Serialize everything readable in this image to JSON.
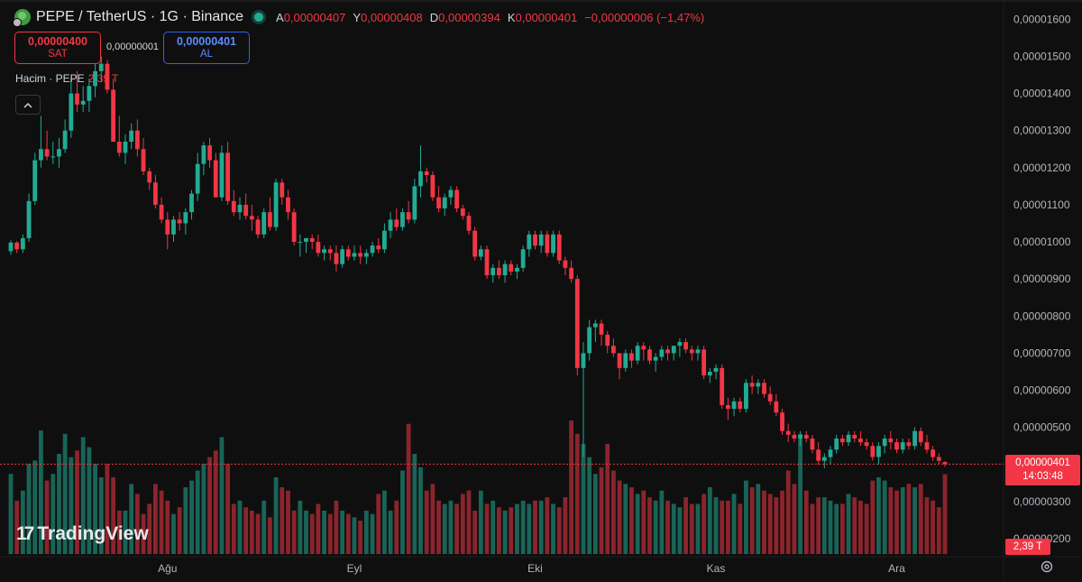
{
  "header": {
    "symbol_title": "PEPE / TetherUS · 1G · Binance",
    "open_label": "A",
    "open_value": "0,00000407",
    "high_label": "Y",
    "high_value": "0,00000408",
    "low_label": "D",
    "low_value": "0,00000394",
    "close_label": "K",
    "close_value": "0,00000401",
    "change": "−0,00000006 (−1,47%)"
  },
  "trade": {
    "sell_price": "0,00000400",
    "sell_label": "SAT",
    "spread": "0,00000001",
    "buy_price": "0,00000401",
    "buy_label": "AL"
  },
  "volume_legend": {
    "label": "Hacim · PEPE",
    "value": "2,39 T"
  },
  "collapse_icon": "chevron-up-icon",
  "logo_text": "TradingView",
  "last_price_tag": {
    "price": "0,00000401",
    "countdown": "14:03:48"
  },
  "volume_tag": "2,39 T",
  "settings_icon": "gear-icon",
  "colors": {
    "up": "#22ab94",
    "down": "#f23645",
    "background": "#0f0f0f",
    "text": "#d1d4dc"
  },
  "chart_data": {
    "type": "candlestick",
    "y_axis_labels": [
      "0,00001600",
      "0,00001500",
      "0,00001400",
      "0,00001300",
      "0,00001200",
      "0,00001100",
      "0,00001000",
      "0,00000900",
      "0,00000800",
      "0,00000700",
      "0,00000600",
      "0,00000500",
      "0,00000300",
      "0,00000200"
    ],
    "y_axis_values": [
      16.0,
      15.0,
      14.0,
      13.0,
      12.0,
      11.0,
      10.0,
      9.0,
      8.0,
      7.0,
      6.0,
      5.0,
      3.0,
      2.0
    ],
    "price_scale": "1e-6",
    "ylim": [
      1.9,
      16.2
    ],
    "x_axis_labels": [
      "Ağu",
      "Eyl",
      "Eki",
      "Kas",
      "Ara"
    ],
    "x_label_candle_index": [
      26,
      57,
      87,
      117,
      147
    ],
    "last_price": 4.01,
    "volume_unit": "T",
    "last_volume": 2.39,
    "candles": [
      [
        9.75,
        10.04,
        9.65,
        9.98
      ],
      [
        9.98,
        10.02,
        9.7,
        9.8
      ],
      [
        9.8,
        10.2,
        9.7,
        10.1
      ],
      [
        10.1,
        11.3,
        10.0,
        11.1
      ],
      [
        11.1,
        12.4,
        11.0,
        12.2
      ],
      [
        12.2,
        13.4,
        12.0,
        12.5
      ],
      [
        12.5,
        13.0,
        12.2,
        12.3
      ],
      [
        12.3,
        12.7,
        12.1,
        12.3
      ],
      [
        12.3,
        12.8,
        12.0,
        12.5
      ],
      [
        12.5,
        13.3,
        12.4,
        13.0
      ],
      [
        13.0,
        14.4,
        12.8,
        14.0
      ],
      [
        14.0,
        14.6,
        13.5,
        13.7
      ],
      [
        13.7,
        14.2,
        13.5,
        13.8
      ],
      [
        13.8,
        14.4,
        13.5,
        14.2
      ],
      [
        14.2,
        14.8,
        13.9,
        14.6
      ],
      [
        14.6,
        15.0,
        14.3,
        14.8
      ],
      [
        14.8,
        14.9,
        14.0,
        14.1
      ],
      [
        14.1,
        14.4,
        12.7,
        12.7
      ],
      [
        12.7,
        13.4,
        12.3,
        12.4
      ],
      [
        12.4,
        12.9,
        12.1,
        12.7
      ],
      [
        12.7,
        13.2,
        12.5,
        13.0
      ],
      [
        13.0,
        13.3,
        12.3,
        12.5
      ],
      [
        12.5,
        12.8,
        11.8,
        11.9
      ],
      [
        11.9,
        12.0,
        11.4,
        11.6
      ],
      [
        11.6,
        11.8,
        10.9,
        11.0
      ],
      [
        11.0,
        11.2,
        10.5,
        10.6
      ],
      [
        10.6,
        10.8,
        9.8,
        10.2
      ],
      [
        10.2,
        10.7,
        10.0,
        10.6
      ],
      [
        10.6,
        10.8,
        10.3,
        10.5
      ],
      [
        10.5,
        10.9,
        10.2,
        10.8
      ],
      [
        10.8,
        11.4,
        10.6,
        11.3
      ],
      [
        11.3,
        12.4,
        11.1,
        12.1
      ],
      [
        12.1,
        12.7,
        11.8,
        12.6
      ],
      [
        12.6,
        12.8,
        12.0,
        12.2
      ],
      [
        12.2,
        12.4,
        11.2,
        11.2
      ],
      [
        11.2,
        12.6,
        11.1,
        12.4
      ],
      [
        12.4,
        12.7,
        11.0,
        11.1
      ],
      [
        11.1,
        11.4,
        10.7,
        10.8
      ],
      [
        10.8,
        11.2,
        10.6,
        11.0
      ],
      [
        11.0,
        11.3,
        10.6,
        10.7
      ],
      [
        10.7,
        11.0,
        10.3,
        10.6
      ],
      [
        10.6,
        10.7,
        10.1,
        10.2
      ],
      [
        10.2,
        10.9,
        10.1,
        10.8
      ],
      [
        10.8,
        11.2,
        10.3,
        10.4
      ],
      [
        10.4,
        11.7,
        10.3,
        11.6
      ],
      [
        11.6,
        11.7,
        11.0,
        11.2
      ],
      [
        11.2,
        11.4,
        10.6,
        10.8
      ],
      [
        10.8,
        10.9,
        9.9,
        10.0
      ],
      [
        10.0,
        10.2,
        9.6,
        10.0
      ],
      [
        10.0,
        10.1,
        9.7,
        10.1
      ],
      [
        10.1,
        10.2,
        9.8,
        10.0
      ],
      [
        10.0,
        10.2,
        9.6,
        9.7
      ],
      [
        9.7,
        9.9,
        9.5,
        9.8
      ],
      [
        9.8,
        9.9,
        9.5,
        9.7
      ],
      [
        9.7,
        9.9,
        9.2,
        9.4
      ],
      [
        9.4,
        9.9,
        9.3,
        9.8
      ],
      [
        9.8,
        9.9,
        9.5,
        9.6
      ],
      [
        9.6,
        9.9,
        9.5,
        9.7
      ],
      [
        9.7,
        9.9,
        9.4,
        9.6
      ],
      [
        9.6,
        9.8,
        9.4,
        9.7
      ],
      [
        9.7,
        10.0,
        9.6,
        9.9
      ],
      [
        9.9,
        10.1,
        9.7,
        9.8
      ],
      [
        9.8,
        10.5,
        9.7,
        10.3
      ],
      [
        10.3,
        10.8,
        10.1,
        10.6
      ],
      [
        10.6,
        10.9,
        10.3,
        10.4
      ],
      [
        10.4,
        10.9,
        10.3,
        10.8
      ],
      [
        10.8,
        11.1,
        10.5,
        10.6
      ],
      [
        10.6,
        11.7,
        10.5,
        11.5
      ],
      [
        11.5,
        12.6,
        11.2,
        11.9
      ],
      [
        11.9,
        12.0,
        11.6,
        11.8
      ],
      [
        11.8,
        11.9,
        11.1,
        11.2
      ],
      [
        11.2,
        11.5,
        10.8,
        10.9
      ],
      [
        10.9,
        11.3,
        10.7,
        11.2
      ],
      [
        11.2,
        11.5,
        11.0,
        11.4
      ],
      [
        11.4,
        11.5,
        10.8,
        10.9
      ],
      [
        10.9,
        11.0,
        10.6,
        10.7
      ],
      [
        10.7,
        10.8,
        10.2,
        10.3
      ],
      [
        10.3,
        10.4,
        9.5,
        9.6
      ],
      [
        9.6,
        9.9,
        9.5,
        9.8
      ],
      [
        9.8,
        9.9,
        9.0,
        9.1
      ],
      [
        9.1,
        9.4,
        8.9,
        9.3
      ],
      [
        9.3,
        9.5,
        9.0,
        9.1
      ],
      [
        9.1,
        9.5,
        8.9,
        9.4
      ],
      [
        9.4,
        9.5,
        9.1,
        9.2
      ],
      [
        9.2,
        9.4,
        9.0,
        9.3
      ],
      [
        9.3,
        9.9,
        9.2,
        9.8
      ],
      [
        9.8,
        10.3,
        9.6,
        10.2
      ],
      [
        10.2,
        10.3,
        9.8,
        9.9
      ],
      [
        9.9,
        10.3,
        9.7,
        10.2
      ],
      [
        10.2,
        10.3,
        9.6,
        9.7
      ],
      [
        9.7,
        10.3,
        9.6,
        10.2
      ],
      [
        10.2,
        10.3,
        9.4,
        9.5
      ],
      [
        9.5,
        9.6,
        9.1,
        9.3
      ],
      [
        9.3,
        9.5,
        8.9,
        9.0
      ],
      [
        9.0,
        9.1,
        6.4,
        6.6
      ],
      [
        6.6,
        7.3,
        4.2,
        7.0
      ],
      [
        7.0,
        7.9,
        6.8,
        7.7
      ],
      [
        7.7,
        7.9,
        7.3,
        7.8
      ],
      [
        7.8,
        7.9,
        7.2,
        7.5
      ],
      [
        7.5,
        7.6,
        7.0,
        7.2
      ],
      [
        7.2,
        7.4,
        6.9,
        7.0
      ],
      [
        7.0,
        7.0,
        6.3,
        6.6
      ],
      [
        6.6,
        7.1,
        6.5,
        7.0
      ],
      [
        7.0,
        7.1,
        6.6,
        6.8
      ],
      [
        6.8,
        7.3,
        6.7,
        7.2
      ],
      [
        7.2,
        7.3,
        6.8,
        7.1
      ],
      [
        7.1,
        7.2,
        6.7,
        6.8
      ],
      [
        6.8,
        7.0,
        6.5,
        6.9
      ],
      [
        6.9,
        7.2,
        6.8,
        7.1
      ],
      [
        7.1,
        7.2,
        6.8,
        7.0
      ],
      [
        7.0,
        7.2,
        6.8,
        7.2
      ],
      [
        7.2,
        7.4,
        6.9,
        7.3
      ],
      [
        7.3,
        7.4,
        7.0,
        7.1
      ],
      [
        7.1,
        7.2,
        6.8,
        7.0
      ],
      [
        7.0,
        7.2,
        6.8,
        7.1
      ],
      [
        7.1,
        7.2,
        6.3,
        6.4
      ],
      [
        6.4,
        6.6,
        6.2,
        6.5
      ],
      [
        6.5,
        6.7,
        6.3,
        6.6
      ],
      [
        6.6,
        6.7,
        5.5,
        5.6
      ],
      [
        5.6,
        5.8,
        5.2,
        5.5
      ],
      [
        5.5,
        5.8,
        5.3,
        5.7
      ],
      [
        5.7,
        5.8,
        5.4,
        5.5
      ],
      [
        5.5,
        6.3,
        5.4,
        6.2
      ],
      [
        6.2,
        6.4,
        5.9,
        6.1
      ],
      [
        6.1,
        6.3,
        5.9,
        6.2
      ],
      [
        6.2,
        6.3,
        5.8,
        5.9
      ],
      [
        5.9,
        6.1,
        5.6,
        5.7
      ],
      [
        5.7,
        5.9,
        5.3,
        5.4
      ],
      [
        5.4,
        5.5,
        4.8,
        4.9
      ],
      [
        4.9,
        5.1,
        4.6,
        4.8
      ],
      [
        4.8,
        4.9,
        4.6,
        4.7
      ],
      [
        4.7,
        4.9,
        4.5,
        4.8
      ],
      [
        4.8,
        4.9,
        4.6,
        4.7
      ],
      [
        4.7,
        4.8,
        4.3,
        4.4
      ],
      [
        4.4,
        4.6,
        4.0,
        4.1
      ],
      [
        4.1,
        4.3,
        3.9,
        4.2
      ],
      [
        4.2,
        4.5,
        4.0,
        4.4
      ],
      [
        4.4,
        4.8,
        4.3,
        4.7
      ],
      [
        4.7,
        4.8,
        4.5,
        4.6
      ],
      [
        4.6,
        4.9,
        4.5,
        4.8
      ],
      [
        4.8,
        4.9,
        4.6,
        4.7
      ],
      [
        4.7,
        4.9,
        4.5,
        4.6
      ],
      [
        4.6,
        4.7,
        4.4,
        4.5
      ],
      [
        4.5,
        4.6,
        4.1,
        4.2
      ],
      [
        4.2,
        4.6,
        4.0,
        4.5
      ],
      [
        4.5,
        4.8,
        4.3,
        4.7
      ],
      [
        4.7,
        4.9,
        4.4,
        4.6
      ],
      [
        4.6,
        4.7,
        4.3,
        4.4
      ],
      [
        4.4,
        4.7,
        4.3,
        4.6
      ],
      [
        4.6,
        4.7,
        4.4,
        4.5
      ],
      [
        4.5,
        5.0,
        4.4,
        4.9
      ],
      [
        4.9,
        5.0,
        4.5,
        4.6
      ],
      [
        4.6,
        4.8,
        4.3,
        4.4
      ],
      [
        4.4,
        4.5,
        4.1,
        4.2
      ],
      [
        4.2,
        4.3,
        4.0,
        4.1
      ],
      [
        4.07,
        4.08,
        3.94,
        4.01
      ]
    ],
    "volumes": [
      2.4,
      1.6,
      1.9,
      2.7,
      2.8,
      3.7,
      2.2,
      2.4,
      3.0,
      3.6,
      2.9,
      3.1,
      3.5,
      3.2,
      2.7,
      2.3,
      2.7,
      2.3,
      1.3,
      1.3,
      2.1,
      1.8,
      1.2,
      1.5,
      2.1,
      1.9,
      1.6,
      1.2,
      1.4,
      2.0,
      2.2,
      2.5,
      2.7,
      2.9,
      3.1,
      3.5,
      2.7,
      1.5,
      1.6,
      1.4,
      1.3,
      1.2,
      1.6,
      1.1,
      2.3,
      2.0,
      1.9,
      1.3,
      1.6,
      1.3,
      1.2,
      1.5,
      1.3,
      1.2,
      1.6,
      1.3,
      1.2,
      1.1,
      1.0,
      1.3,
      1.2,
      1.8,
      1.9,
      1.3,
      1.6,
      2.5,
      3.9,
      3.0,
      2.6,
      1.9,
      2.1,
      1.6,
      1.5,
      1.6,
      1.5,
      1.8,
      1.9,
      1.3,
      1.9,
      1.5,
      1.6,
      1.4,
      1.3,
      1.4,
      1.5,
      1.6,
      1.5,
      1.6,
      1.6,
      1.7,
      1.5,
      1.4,
      1.7,
      4.0,
      3.6,
      3.3,
      2.9,
      2.4,
      2.6,
      3.3,
      2.5,
      2.2,
      2.1,
      2.0,
      1.8,
      1.9,
      1.7,
      1.6,
      1.9,
      1.6,
      1.5,
      1.4,
      1.7,
      1.5,
      1.5,
      1.8,
      2.0,
      1.7,
      1.6,
      1.6,
      1.8,
      1.5,
      2.2,
      2.0,
      2.1,
      1.9,
      1.8,
      1.7,
      1.9,
      2.5,
      2.1,
      3.6,
      1.9,
      1.5,
      1.7,
      1.7,
      1.6,
      1.5,
      1.5,
      1.8,
      1.7,
      1.6,
      1.5,
      2.2,
      2.3,
      2.2,
      2.0,
      1.9,
      2.0,
      2.1,
      2.0,
      2.1,
      1.7,
      1.6,
      1.4,
      2.39
    ]
  }
}
